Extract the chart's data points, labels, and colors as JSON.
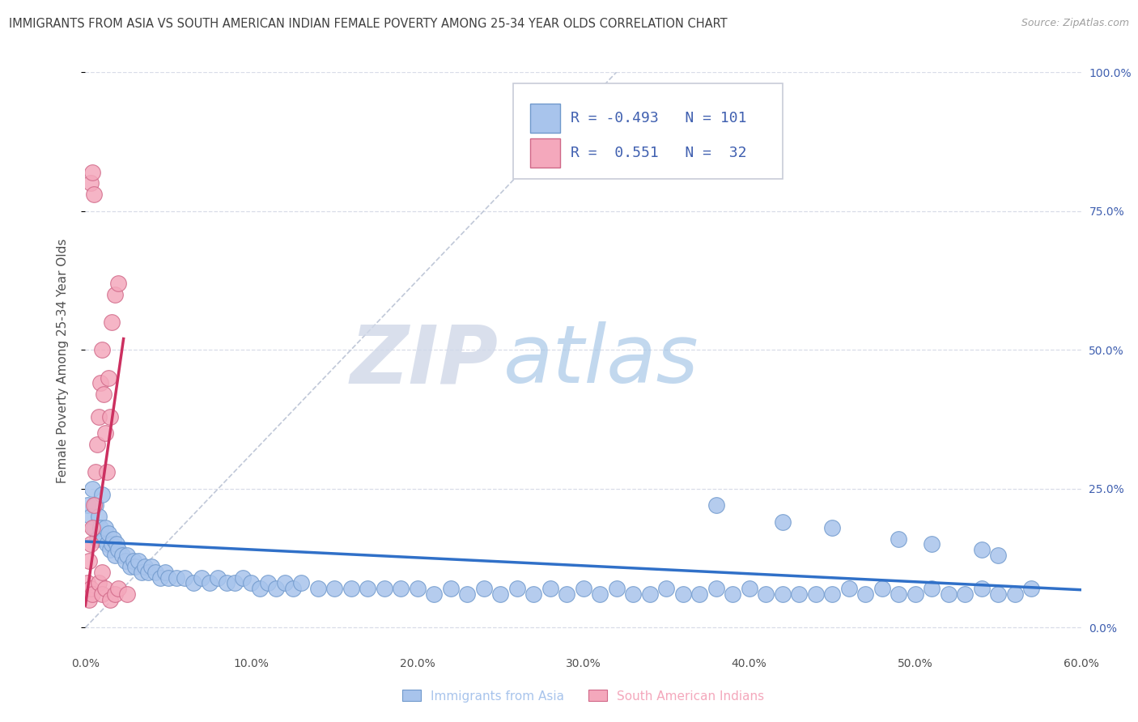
{
  "title": "IMMIGRANTS FROM ASIA VS SOUTH AMERICAN INDIAN FEMALE POVERTY AMONG 25-34 YEAR OLDS CORRELATION CHART",
  "source": "Source: ZipAtlas.com",
  "ylabel": "Female Poverty Among 25-34 Year Olds",
  "watermark_zip": "ZIP",
  "watermark_atlas": "atlas",
  "xlim": [
    0.0,
    0.6
  ],
  "ylim": [
    -0.04,
    1.0
  ],
  "xticks": [
    0.0,
    0.1,
    0.2,
    0.3,
    0.4,
    0.5,
    0.6
  ],
  "xticklabels": [
    "0.0%",
    "10.0%",
    "20.0%",
    "30.0%",
    "40.0%",
    "50.0%",
    "60.0%"
  ],
  "yticks_right": [
    0.0,
    0.25,
    0.5,
    0.75,
    1.0
  ],
  "yticklabels_right": [
    "0.0%",
    "25.0%",
    "50.0%",
    "75.0%",
    "100.0%"
  ],
  "blue_color": "#a8c4ec",
  "pink_color": "#f4a8bc",
  "blue_edge": "#7099cc",
  "pink_edge": "#d06888",
  "trend_blue": "#3070c8",
  "trend_pink": "#cc3060",
  "legend_R_blue": "-0.493",
  "legend_N_blue": "101",
  "legend_R_pink": "0.551",
  "legend_N_pink": "32",
  "legend_label_blue": "Immigrants from Asia",
  "legend_label_pink": "South American Indians",
  "blue_scatter_x": [
    0.001,
    0.003,
    0.004,
    0.005,
    0.006,
    0.007,
    0.008,
    0.009,
    0.01,
    0.011,
    0.012,
    0.013,
    0.014,
    0.015,
    0.016,
    0.017,
    0.018,
    0.019,
    0.02,
    0.022,
    0.024,
    0.025,
    0.027,
    0.029,
    0.03,
    0.032,
    0.034,
    0.036,
    0.038,
    0.04,
    0.042,
    0.045,
    0.048,
    0.05,
    0.055,
    0.06,
    0.065,
    0.07,
    0.075,
    0.08,
    0.085,
    0.09,
    0.095,
    0.1,
    0.105,
    0.11,
    0.115,
    0.12,
    0.125,
    0.13,
    0.14,
    0.15,
    0.16,
    0.17,
    0.18,
    0.19,
    0.2,
    0.21,
    0.22,
    0.23,
    0.24,
    0.25,
    0.26,
    0.27,
    0.28,
    0.29,
    0.3,
    0.31,
    0.32,
    0.33,
    0.34,
    0.35,
    0.36,
    0.37,
    0.38,
    0.39,
    0.4,
    0.41,
    0.42,
    0.43,
    0.44,
    0.45,
    0.46,
    0.47,
    0.48,
    0.49,
    0.5,
    0.51,
    0.52,
    0.53,
    0.54,
    0.55,
    0.56,
    0.57,
    0.38,
    0.42,
    0.45,
    0.49,
    0.51,
    0.54,
    0.55
  ],
  "blue_scatter_y": [
    0.22,
    0.2,
    0.25,
    0.18,
    0.22,
    0.16,
    0.2,
    0.18,
    0.24,
    0.16,
    0.18,
    0.15,
    0.17,
    0.14,
    0.15,
    0.16,
    0.13,
    0.15,
    0.14,
    0.13,
    0.12,
    0.13,
    0.11,
    0.12,
    0.11,
    0.12,
    0.1,
    0.11,
    0.1,
    0.11,
    0.1,
    0.09,
    0.1,
    0.09,
    0.09,
    0.09,
    0.08,
    0.09,
    0.08,
    0.09,
    0.08,
    0.08,
    0.09,
    0.08,
    0.07,
    0.08,
    0.07,
    0.08,
    0.07,
    0.08,
    0.07,
    0.07,
    0.07,
    0.07,
    0.07,
    0.07,
    0.07,
    0.06,
    0.07,
    0.06,
    0.07,
    0.06,
    0.07,
    0.06,
    0.07,
    0.06,
    0.07,
    0.06,
    0.07,
    0.06,
    0.06,
    0.07,
    0.06,
    0.06,
    0.07,
    0.06,
    0.07,
    0.06,
    0.06,
    0.06,
    0.06,
    0.06,
    0.07,
    0.06,
    0.07,
    0.06,
    0.06,
    0.07,
    0.06,
    0.06,
    0.07,
    0.06,
    0.06,
    0.07,
    0.22,
    0.19,
    0.18,
    0.16,
    0.15,
    0.14,
    0.13
  ],
  "pink_scatter_x": [
    0.001,
    0.002,
    0.003,
    0.004,
    0.005,
    0.006,
    0.007,
    0.008,
    0.009,
    0.01,
    0.011,
    0.012,
    0.013,
    0.014,
    0.015,
    0.016,
    0.018,
    0.02,
    0.002,
    0.003,
    0.004,
    0.003,
    0.005,
    0.004,
    0.008,
    0.01,
    0.012,
    0.015,
    0.018,
    0.01,
    0.02,
    0.025
  ],
  "pink_scatter_y": [
    0.08,
    0.12,
    0.15,
    0.18,
    0.22,
    0.28,
    0.33,
    0.38,
    0.44,
    0.5,
    0.42,
    0.35,
    0.28,
    0.45,
    0.38,
    0.55,
    0.6,
    0.62,
    0.05,
    0.07,
    0.06,
    0.8,
    0.78,
    0.82,
    0.08,
    0.06,
    0.07,
    0.05,
    0.06,
    0.1,
    0.07,
    0.06
  ],
  "blue_trend_x0": 0.0,
  "blue_trend_x1": 0.6,
  "blue_trend_y0": 0.155,
  "blue_trend_y1": 0.068,
  "pink_trend_x0": 0.0,
  "pink_trend_x1": 0.023,
  "pink_trend_y0": 0.04,
  "pink_trend_y1": 0.52,
  "dashed_line_x0": 0.0,
  "dashed_line_x1": 0.32,
  "dashed_line_y0": 0.0,
  "dashed_line_y1": 1.0,
  "background_color": "#ffffff",
  "grid_color": "#d8dce8",
  "title_color": "#404040",
  "axis_label_color": "#505050",
  "right_axis_color": "#4060b0"
}
